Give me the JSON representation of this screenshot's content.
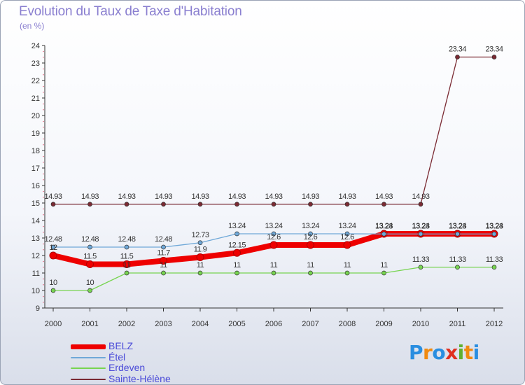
{
  "title": "Evolution du Taux de Taxe d'Habitation",
  "unit_label": "(en %)",
  "logo": {
    "letters": [
      {
        "ch": "P",
        "color": "#2a8ee0"
      },
      {
        "ch": "r",
        "color": "#f08a10"
      },
      {
        "ch": "o",
        "color": "#2a8ee0"
      },
      {
        "ch": "x",
        "color": "#e03020"
      },
      {
        "ch": "i",
        "color": "#60b030"
      },
      {
        "ch": "t",
        "color": "#f08a10"
      },
      {
        "ch": "i",
        "color": "#2a8ee0"
      }
    ]
  },
  "chart_data": {
    "type": "line",
    "title": "Evolution du Taux de Taxe d'Habitation",
    "ylabel": "(en %)",
    "xlabel": "",
    "categories": [
      "2000",
      "2001",
      "2002",
      "2003",
      "2004",
      "2005",
      "2006",
      "2007",
      "2008",
      "2009",
      "2010",
      "2011",
      "2012"
    ],
    "ylim": [
      9,
      24
    ],
    "yticks": [
      9,
      10,
      11,
      12,
      13,
      14,
      15,
      16,
      17,
      18,
      19,
      20,
      21,
      22,
      23,
      24
    ],
    "grid": false,
    "legend_position": "bottom-left",
    "series": [
      {
        "name": "Sainte-Hélène",
        "color": "#7a2a33",
        "width": 1.3,
        "marker": 3,
        "values": [
          14.93,
          14.93,
          14.93,
          14.93,
          14.93,
          14.93,
          14.93,
          14.93,
          14.93,
          14.93,
          14.93,
          23.34,
          23.34
        ],
        "labels": [
          "14.93",
          "14.93",
          "14.93",
          "14.93",
          "14.93",
          "14.93",
          "14.93",
          "14.93",
          "14.93",
          "14.93",
          "14.93",
          "23.34",
          "23.34"
        ]
      },
      {
        "name": "Erdeven",
        "color": "#77d450",
        "width": 1.3,
        "marker": 3,
        "values": [
          10,
          10,
          11,
          11,
          11,
          11,
          11,
          11,
          11,
          11,
          11.33,
          11.33,
          11.33
        ],
        "labels": [
          "10",
          "10",
          "11",
          "11",
          "11",
          "11",
          "11",
          "11",
          "11",
          "11",
          "11.33",
          "11.33",
          "11.33"
        ]
      },
      {
        "name": "BELZ",
        "color": "#ee0000",
        "width": 8,
        "marker": 5,
        "values": [
          12,
          11.5,
          11.5,
          11.7,
          11.9,
          12.15,
          12.6,
          12.6,
          12.6,
          13.24,
          13.24,
          13.24,
          13.24
        ],
        "labels": [
          "12",
          "11.5",
          "11.5",
          "11.7",
          "11.9",
          "12.15",
          "12.6",
          "12.6",
          "12.6",
          "13.24",
          "13.24",
          "13.24",
          "13.24"
        ]
      },
      {
        "name": "Étel",
        "color": "#6fa8d8",
        "width": 1.3,
        "marker": 3,
        "values": [
          12.48,
          12.48,
          12.48,
          12.48,
          12.73,
          13.24,
          13.24,
          13.24,
          13.24,
          13.23,
          13.23,
          13.23,
          13.23
        ],
        "labels": [
          "12.48",
          "12.48",
          "12.48",
          "12.48",
          "12.73",
          "13.24",
          "13.24",
          "13.24",
          "13.24",
          "13.23",
          "13.23",
          "13.23",
          "13.23"
        ]
      }
    ],
    "legend": [
      "BELZ",
      "Étel",
      "Erdeven",
      "Sainte-Hélène"
    ]
  }
}
